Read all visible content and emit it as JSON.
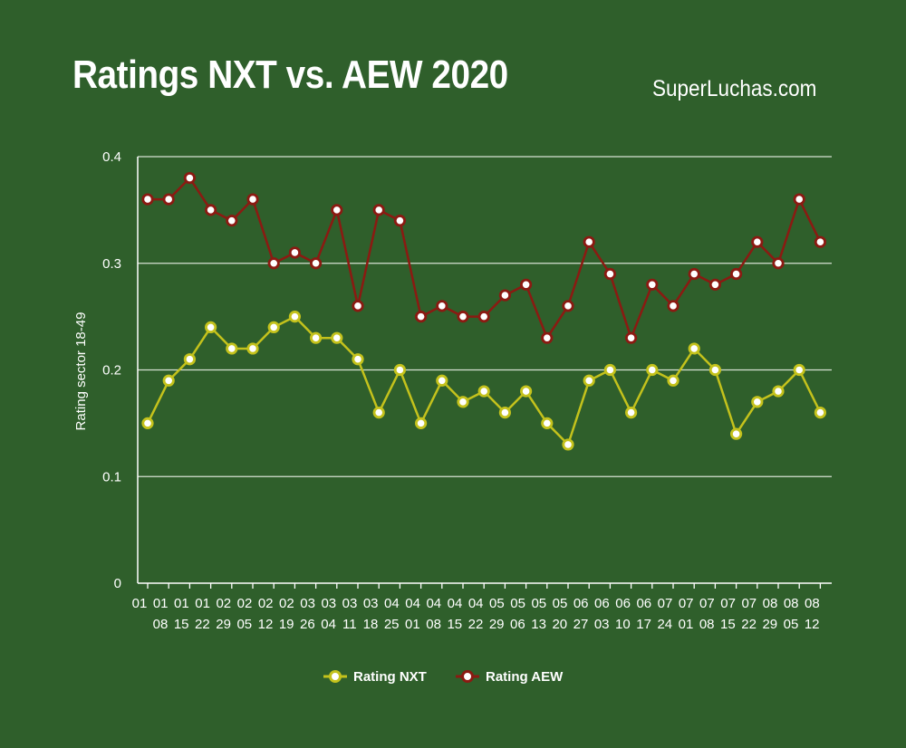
{
  "header": {
    "title": "Ratings NXT vs. AEW 2020",
    "brand": "SuperLuchas.com"
  },
  "chart_data": {
    "type": "line",
    "title": "Ratings NXT vs. AEW 2020",
    "xlabel": "",
    "ylabel": "Rating sector 18-49",
    "ylim": [
      0,
      0.4
    ],
    "yticks": [
      "0",
      "0.1",
      "0.2",
      "0.3",
      "0.4"
    ],
    "grid": true,
    "legend_position": "bottom",
    "categories": [
      {
        "top": "01",
        "bottom": "08"
      },
      {
        "top": "01",
        "bottom": "15"
      },
      {
        "top": "01",
        "bottom": "22"
      },
      {
        "top": "01",
        "bottom": "29"
      },
      {
        "top": "02",
        "bottom": "05"
      },
      {
        "top": "02",
        "bottom": "12"
      },
      {
        "top": "02",
        "bottom": "19"
      },
      {
        "top": "02",
        "bottom": "26"
      },
      {
        "top": "03",
        "bottom": "04"
      },
      {
        "top": "03",
        "bottom": "11"
      },
      {
        "top": "03",
        "bottom": "18"
      },
      {
        "top": "03",
        "bottom": "25"
      },
      {
        "top": "04",
        "bottom": "01"
      },
      {
        "top": "04",
        "bottom": "08"
      },
      {
        "top": "04",
        "bottom": "15"
      },
      {
        "top": "04",
        "bottom": "22"
      },
      {
        "top": "04",
        "bottom": "29"
      },
      {
        "top": "05",
        "bottom": "06"
      },
      {
        "top": "05",
        "bottom": "13"
      },
      {
        "top": "05",
        "bottom": "20"
      },
      {
        "top": "05",
        "bottom": "27"
      },
      {
        "top": "06",
        "bottom": "03"
      },
      {
        "top": "06",
        "bottom": "10"
      },
      {
        "top": "06",
        "bottom": "17"
      },
      {
        "top": "06",
        "bottom": "24"
      },
      {
        "top": "07",
        "bottom": "01"
      },
      {
        "top": "07",
        "bottom": "08"
      },
      {
        "top": "07",
        "bottom": "15"
      },
      {
        "top": "07",
        "bottom": "22"
      },
      {
        "top": "07",
        "bottom": "29"
      },
      {
        "top": "08",
        "bottom": "05"
      },
      {
        "top": "08",
        "bottom": "12"
      },
      {
        "top": "08",
        "bottom": ""
      }
    ],
    "series": [
      {
        "name": "Rating NXT",
        "color": "#c4c21c",
        "values": [
          0.15,
          0.19,
          0.21,
          0.24,
          0.22,
          0.22,
          0.24,
          0.25,
          0.23,
          0.23,
          0.21,
          0.16,
          0.2,
          0.15,
          0.19,
          0.17,
          0.18,
          0.16,
          0.18,
          0.15,
          0.13,
          0.19,
          0.2,
          0.16,
          0.2,
          0.19,
          0.22,
          0.2,
          0.14,
          0.17,
          0.18,
          0.2,
          0.16
        ]
      },
      {
        "name": "Rating AEW",
        "color": "#8b1a12",
        "values": [
          0.36,
          0.36,
          0.38,
          0.35,
          0.34,
          0.36,
          0.3,
          0.31,
          0.3,
          0.35,
          0.26,
          0.35,
          0.34,
          0.25,
          0.26,
          0.25,
          0.25,
          0.27,
          0.28,
          0.23,
          0.26,
          0.32,
          0.29,
          0.23,
          0.28,
          0.26,
          0.29,
          0.28,
          0.29,
          0.32,
          0.3,
          0.36,
          0.32
        ]
      }
    ]
  }
}
